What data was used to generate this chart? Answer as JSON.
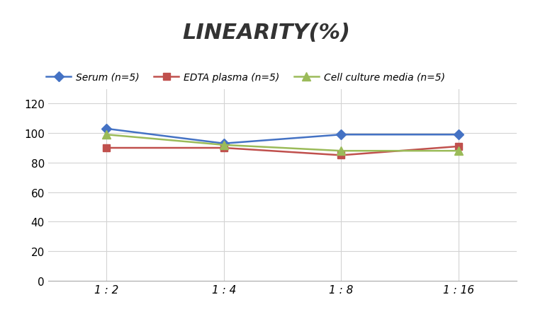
{
  "title": "LINEARITY(%)",
  "x_labels": [
    "1 : 2",
    "1 : 4",
    "1 : 8",
    "1 : 16"
  ],
  "series": [
    {
      "label": "Serum (n=5)",
      "values": [
        103,
        93,
        99,
        99
      ],
      "color": "#4472C4",
      "marker": "D",
      "marker_size": 7,
      "linewidth": 1.8
    },
    {
      "label": "EDTA plasma (n=5)",
      "values": [
        90,
        90,
        85,
        91
      ],
      "color": "#C0504D",
      "marker": "s",
      "marker_size": 7,
      "linewidth": 1.8
    },
    {
      "label": "Cell culture media (n=5)",
      "values": [
        99,
        92,
        88,
        88
      ],
      "color": "#9BBB59",
      "marker": "^",
      "marker_size": 8,
      "linewidth": 1.8
    }
  ],
  "ylim": [
    0,
    130
  ],
  "yticks": [
    0,
    20,
    40,
    60,
    80,
    100,
    120
  ],
  "background_color": "#ffffff",
  "grid_color": "#d3d3d3",
  "title_fontsize": 22,
  "legend_fontsize": 10.5,
  "tick_fontsize": 11
}
